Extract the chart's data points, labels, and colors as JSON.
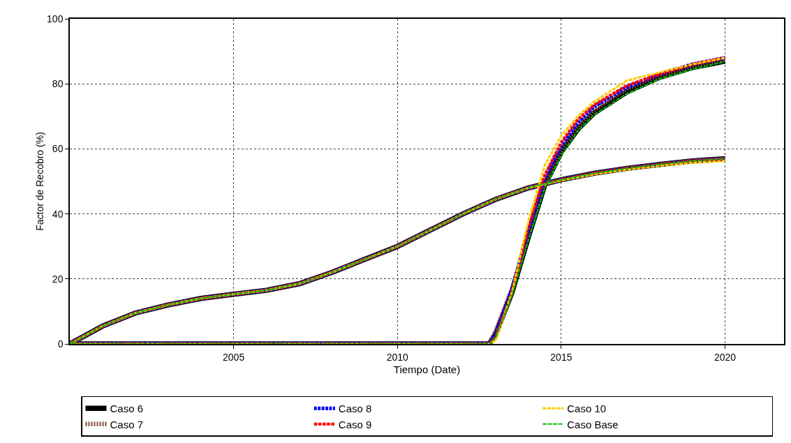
{
  "chart_data": {
    "type": "line",
    "xlabel": "Tiempo (Date)",
    "ylabel": "Factor de Recobro (%)",
    "xlim": [
      2000,
      2021.8
    ],
    "xticks": [
      2005,
      2010,
      2015,
      2020
    ],
    "ylim": [
      0,
      100
    ],
    "yticks": [
      0,
      20,
      40,
      60,
      80,
      100
    ],
    "grid": true,
    "legend": "bottom",
    "marker": "none",
    "series": [
      {
        "name": "Caso 6",
        "color": "#000000",
        "line_style": "solid",
        "x": [
          2000,
          2001,
          2002,
          2003,
          2004,
          2005,
          2006,
          2007,
          2008,
          2009,
          2010,
          2011,
          2012,
          2013,
          2014,
          2015,
          2016,
          2017,
          2018,
          2019,
          2020,
          null,
          2000,
          2012.8,
          2013,
          2013.5,
          2014,
          2014.5,
          2015,
          2015.5,
          2016,
          2017,
          2018,
          2019,
          2020
        ],
        "values": [
          0,
          5.5,
          9.5,
          12,
          14,
          15.3,
          16.5,
          18.5,
          22,
          26,
          30,
          35,
          40,
          44.5,
          48,
          50.5,
          52.5,
          54,
          55.2,
          56.3,
          57,
          null,
          0,
          0,
          3,
          16,
          33,
          49,
          59,
          66,
          71,
          77.5,
          82,
          85,
          87
        ]
      },
      {
        "name": "Caso 7",
        "color": "#7f4f33",
        "line_style": "dotted",
        "x": [
          2000,
          2001,
          2002,
          2003,
          2004,
          2005,
          2006,
          2007,
          2008,
          2009,
          2010,
          2011,
          2012,
          2013,
          2014,
          2015,
          2016,
          2017,
          2018,
          2019,
          2020,
          null,
          2000,
          2012.8,
          2013,
          2013.5,
          2014,
          2014.5,
          2015,
          2015.5,
          2016,
          2017,
          2018,
          2019,
          2020
        ],
        "values": [
          0,
          5.5,
          9.5,
          12,
          14,
          15.3,
          16.5,
          18.5,
          22,
          26,
          30,
          35,
          40,
          44.5,
          48,
          50.5,
          52.5,
          54,
          55.2,
          56.3,
          57,
          null,
          0,
          0,
          4,
          17,
          34,
          50,
          60,
          67,
          72,
          78.5,
          82.5,
          85.5,
          87.5
        ]
      },
      {
        "name": "Caso 8",
        "color": "#0000ff",
        "line_style": "dashed",
        "x": [
          2000,
          2001,
          2002,
          2003,
          2004,
          2005,
          2006,
          2007,
          2008,
          2009,
          2010,
          2011,
          2012,
          2013,
          2014,
          2015,
          2016,
          2017,
          2018,
          2019,
          2020,
          null,
          2000,
          2012.8,
          2013,
          2013.5,
          2014,
          2014.5,
          2015,
          2015.5,
          2016,
          2017,
          2018,
          2019,
          2020
        ],
        "values": [
          0,
          5.5,
          9.5,
          12,
          14,
          15.3,
          16.5,
          18.5,
          22,
          26,
          30,
          35,
          40,
          44.5,
          48,
          50.5,
          52.5,
          54,
          55.2,
          56.3,
          57,
          null,
          0,
          0,
          3,
          17,
          35,
          51,
          61,
          68,
          73,
          79,
          83,
          86,
          88
        ]
      },
      {
        "name": "Caso 9",
        "color": "#ff0000",
        "line_style": "dashed",
        "x": [
          2000,
          2001,
          2002,
          2003,
          2004,
          2005,
          2006,
          2007,
          2008,
          2009,
          2010,
          2011,
          2012,
          2013,
          2014,
          2015,
          2016,
          2017,
          2018,
          2019,
          2020,
          null,
          2000,
          2012.8,
          2013,
          2013.5,
          2014,
          2014.5,
          2015,
          2015.5,
          2016,
          2017,
          2018,
          2019,
          2020
        ],
        "values": [
          0,
          5.5,
          9.5,
          12,
          14,
          15.3,
          16.5,
          18.5,
          22,
          26,
          30,
          35,
          40,
          44.5,
          48,
          50.5,
          52.5,
          54,
          55.2,
          56.3,
          57,
          null,
          0,
          0,
          2,
          16,
          36,
          52,
          62,
          69,
          73.5,
          79.5,
          83,
          86,
          88
        ]
      },
      {
        "name": "Caso 10",
        "color": "#ffcc00",
        "line_style": "dashed",
        "x": [
          2000,
          2001,
          2002,
          2003,
          2004,
          2005,
          2006,
          2007,
          2008,
          2009,
          2010,
          2011,
          2012,
          2013,
          2014,
          2015,
          2016,
          2017,
          2018,
          2019,
          2020,
          null,
          2000,
          2012.8,
          2013,
          2013.5,
          2014,
          2014.5,
          2015,
          2015.5,
          2016,
          2017,
          2018,
          2019,
          2020
        ],
        "values": [
          0,
          5.5,
          9.5,
          12,
          14,
          15.3,
          16.5,
          18.5,
          22,
          26,
          30,
          35,
          40,
          44.5,
          48,
          50.3,
          52.2,
          53.6,
          54.8,
          55.7,
          56.3,
          null,
          0,
          0,
          1,
          16,
          38,
          55,
          64,
          70,
          74.5,
          81,
          83.5,
          86,
          88
        ]
      },
      {
        "name": "Caso Base",
        "color": "#00c000",
        "line_style": "dashed",
        "x": [
          2000,
          2001,
          2002,
          2003,
          2004,
          2005,
          2006,
          2007,
          2008,
          2009,
          2010,
          2011,
          2012,
          2013,
          2014,
          2015,
          2016,
          2017,
          2018,
          2019,
          2020,
          null,
          2000,
          2012.8,
          2013,
          2013.5,
          2014,
          2014.5,
          2015,
          2015.5,
          2016,
          2017,
          2018,
          2019,
          2020
        ],
        "values": [
          0,
          5.5,
          9.5,
          12,
          14,
          15.3,
          16.5,
          18.5,
          22,
          26,
          30,
          35,
          40,
          44.5,
          48,
          50.5,
          52.5,
          54,
          55.2,
          56.3,
          57,
          null,
          0,
          0,
          2,
          15,
          32,
          48,
          58,
          65.5,
          70.5,
          77,
          81.5,
          84.5,
          86.8
        ]
      }
    ]
  }
}
